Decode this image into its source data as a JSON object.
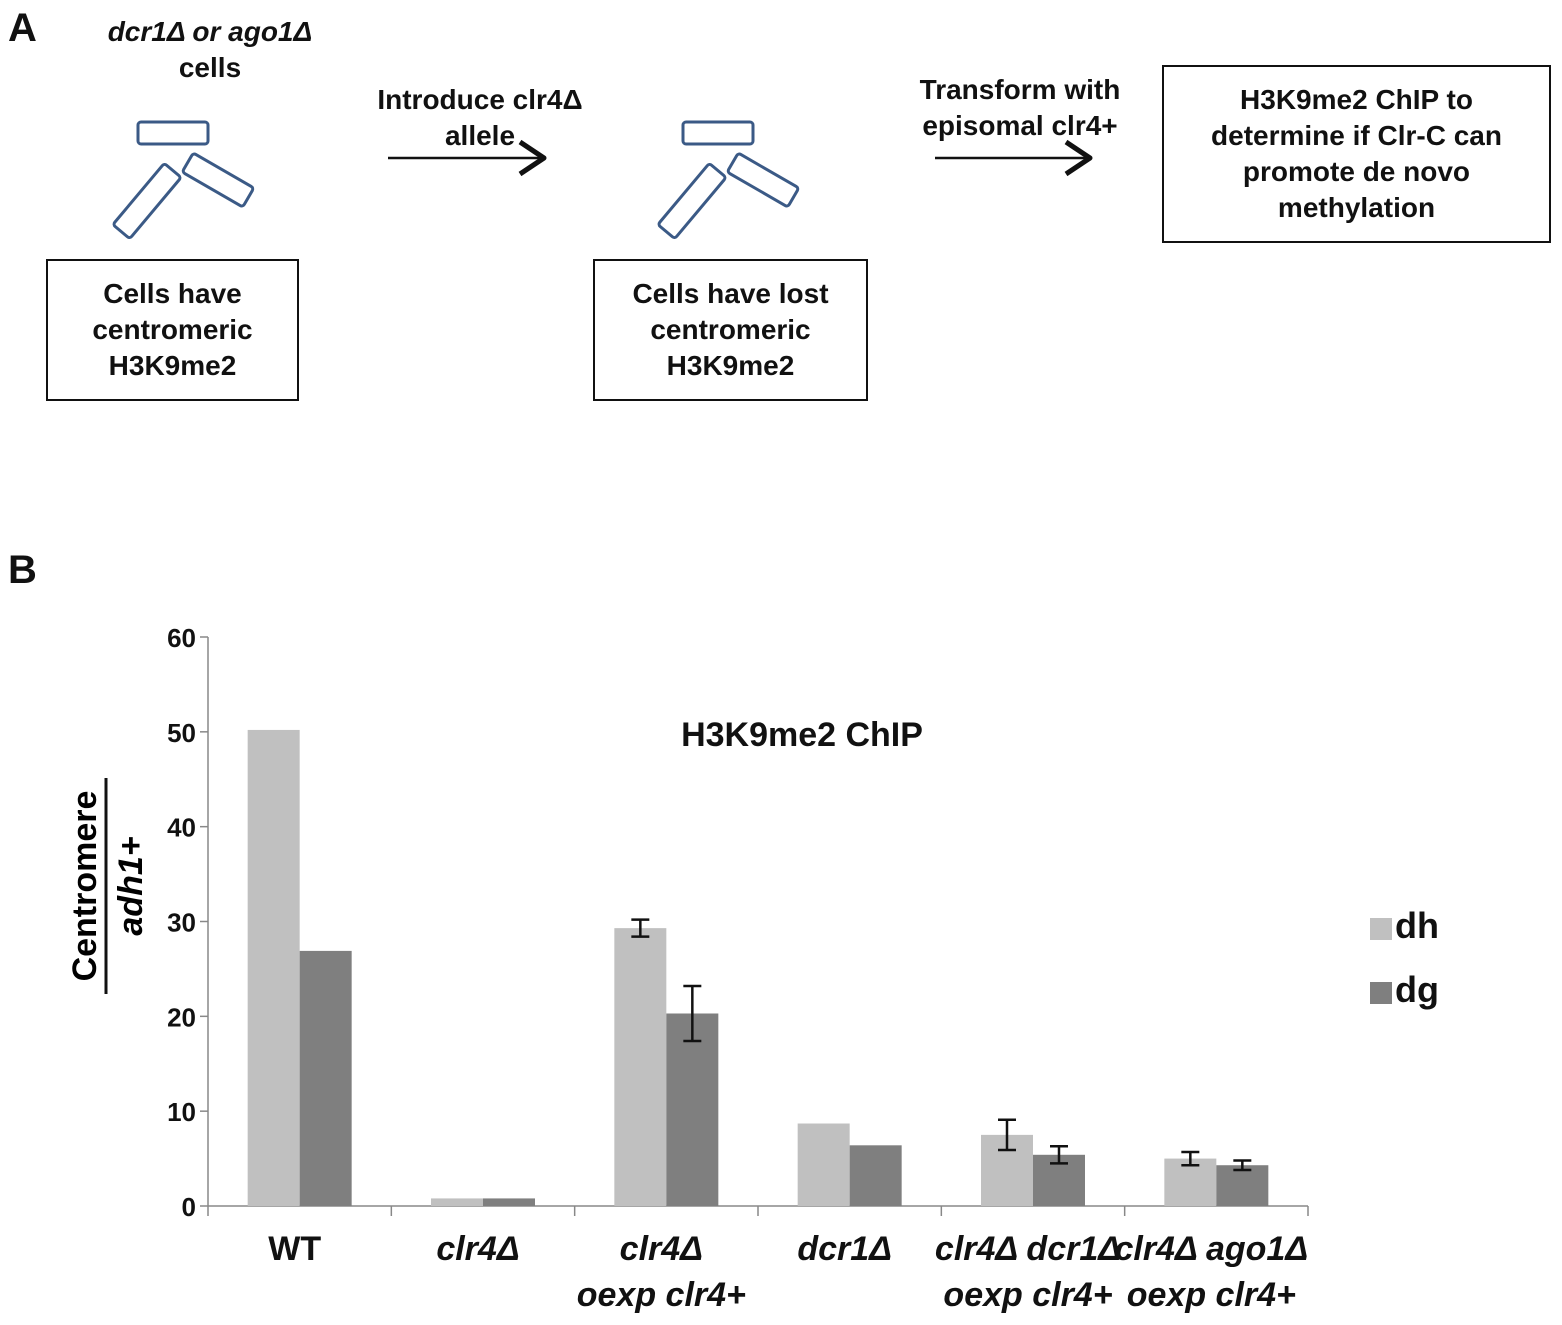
{
  "panel_a": {
    "letter": "A",
    "strain_line1": "dcr1Δ or ago1Δ",
    "strain_line2": "cells",
    "step1_line1": "Introduce clr4Δ",
    "step1_line2": "allele",
    "step2_line1": "Transform with",
    "step2_line2": "episomal clr4+",
    "box1": [
      "Cells have",
      "centromeric",
      "H3K9me2"
    ],
    "box2": [
      "Cells have lost",
      "centromeric",
      "H3K9me2"
    ],
    "box3": [
      "H3K9me2 ChIP to",
      "determine if Clr-C can",
      "promote de novo",
      "methylation"
    ],
    "chromosome_color": "#3b5a86"
  },
  "panel_b": {
    "letter": "B"
  },
  "chart_data": {
    "type": "bar",
    "title": "H3K9me2 ChIP",
    "ylabel_numerator": "Centromere",
    "ylabel_denominator": "adh1+",
    "ylim": [
      0,
      60
    ],
    "yticks": [
      "0",
      "10",
      "20",
      "30",
      "40",
      "50",
      "60"
    ],
    "categories": [
      [
        "WT"
      ],
      [
        "clr4Δ"
      ],
      [
        "clr4Δ",
        "oexp clr4+"
      ],
      [
        "dcr1Δ"
      ],
      [
        "clr4Δ dcr1Δ",
        "oexp clr4+"
      ],
      [
        "clr4Δ ago1Δ",
        "oexp clr4+"
      ]
    ],
    "series": [
      {
        "name": "dh",
        "color": "#c0c0c0",
        "values": [
          50.2,
          0.8,
          29.3,
          8.7,
          7.5,
          5.0
        ],
        "errors": [
          null,
          null,
          0.9,
          null,
          1.6,
          0.7
        ]
      },
      {
        "name": "dg",
        "color": "#7f7f7f",
        "values": [
          26.9,
          0.8,
          20.3,
          6.4,
          5.4,
          4.3
        ],
        "errors": [
          null,
          null,
          2.9,
          null,
          0.9,
          0.5
        ]
      }
    ],
    "legend_position": "right",
    "grid": false
  }
}
